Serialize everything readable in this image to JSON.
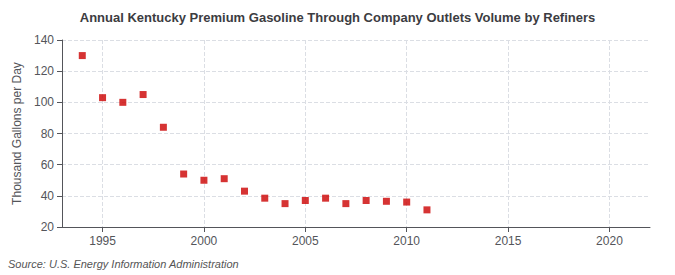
{
  "chart_data": {
    "type": "scatter",
    "title": "Annual Kentucky Premium Gasoline Through Company Outlets Volume by Refiners",
    "ylabel": "Thousand Gallons per Day",
    "annotation": "Source: U.S. Energy Information Administration",
    "x": [
      1994,
      1995,
      1996,
      1997,
      1998,
      1999,
      2000,
      2001,
      2002,
      2003,
      2004,
      2005,
      2006,
      2007,
      2008,
      2009,
      2010,
      2011
    ],
    "values": [
      130,
      103,
      100,
      105,
      84,
      54,
      50,
      51,
      43,
      38.5,
      35,
      37,
      38.5,
      35,
      37,
      36.5,
      36,
      31
    ],
    "color": "#cc0000",
    "marker": "square",
    "xlim": [
      1993.0,
      2022.0
    ],
    "ylim": [
      20,
      140
    ],
    "xticks": [
      1995,
      2000,
      2005,
      2010,
      2015,
      2020
    ],
    "yticks": [
      20,
      40,
      60,
      80,
      100,
      120,
      140
    ],
    "grid": true
  }
}
